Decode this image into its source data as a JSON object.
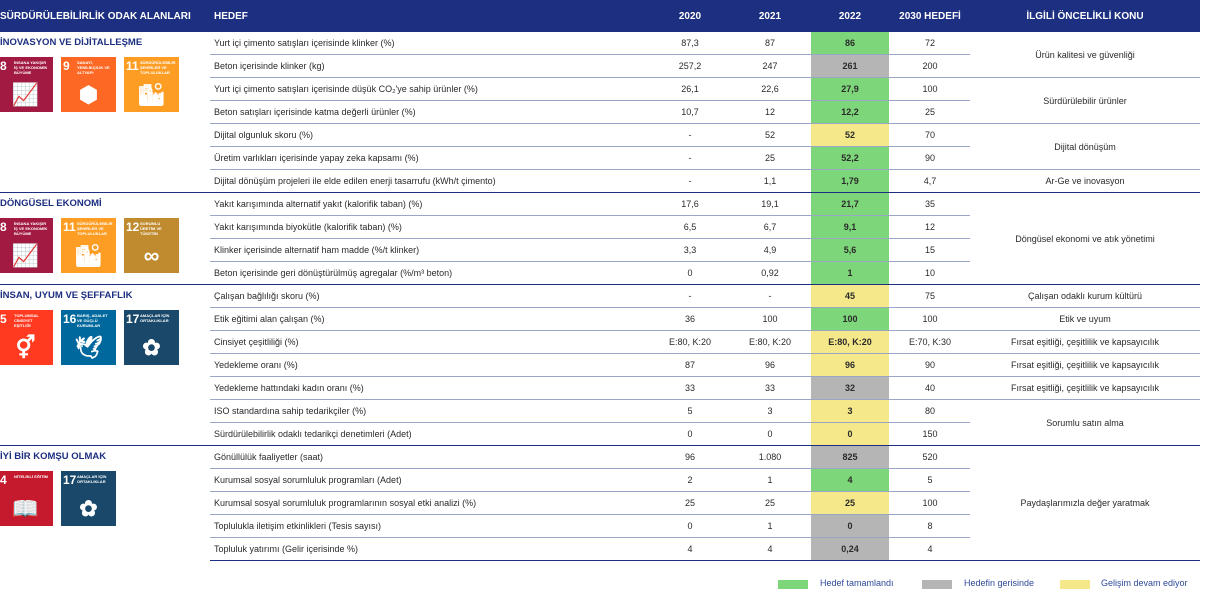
{
  "header": {
    "col_focus": "SÜRDÜRÜLEBİLİRLİK ODAK ALANLARI",
    "col_hedef": "HEDEF",
    "col_2020": "2020",
    "col_2021": "2021",
    "col_2022": "2022",
    "col_2030": "2030 HEDEFİ",
    "col_konu": "İLGİLİ ÖNCELİKLİ KONU"
  },
  "sections": [
    {
      "title": "İNOVASYON VE DİJİTALLEŞME",
      "sdgs": [
        {
          "num": "8",
          "label": "İNSANA YAKIŞIR İŞ VE EKONOMİK BÜYÜME",
          "color": "#a21942",
          "icon": "📈"
        },
        {
          "num": "9",
          "label": "SANAYİ, YENİLİKÇİLİK VE ALTYAPI",
          "color": "#fd6925",
          "icon": "⬢"
        },
        {
          "num": "11",
          "label": "SÜRDÜRÜLEBİLİR ŞEHİRLER VE TOPLULUKLAR",
          "color": "#fd9d24",
          "icon": "🏙"
        }
      ]
    },
    {
      "title": "DÖNGÜSEL EKONOMİ",
      "sdgs": [
        {
          "num": "8",
          "label": "İNSANA YAKIŞIR İŞ VE EKONOMİK BÜYÜME",
          "color": "#a21942",
          "icon": "📈"
        },
        {
          "num": "11",
          "label": "SÜRDÜRÜLEBİLİR ŞEHİRLER VE TOPLULUKLAR",
          "color": "#fd9d24",
          "icon": "🏙"
        },
        {
          "num": "12",
          "label": "SORUMLU ÜRETİM VE TÜKETİM",
          "color": "#bf8b2e",
          "icon": "∞"
        }
      ]
    },
    {
      "title": "İNSAN, UYUM VE ŞEFFAFLIK",
      "sdgs": [
        {
          "num": "5",
          "label": "TOPLUMSAL CİNSİYET EŞİTLİĞİ",
          "color": "#ff3a21",
          "icon": "⚥"
        },
        {
          "num": "16",
          "label": "BARIŞ, ADALET VE GÜÇLÜ KURUMLAR",
          "color": "#00689d",
          "icon": "🕊"
        },
        {
          "num": "17",
          "label": "AMAÇLAR İÇİN ORTAKLIKLAR",
          "color": "#19486a",
          "icon": "✿"
        }
      ]
    },
    {
      "title": "İYİ BİR KOMŞU OLMAK",
      "sdgs": [
        {
          "num": "4",
          "label": "NİTELİKLİ EĞİTİM",
          "color": "#c5192d",
          "icon": "📖"
        },
        {
          "num": "17",
          "label": "AMAÇLAR İÇİN ORTAKLIKLAR",
          "color": "#19486a",
          "icon": "✿"
        }
      ]
    }
  ],
  "rows": [
    {
      "hedef": "Yurt içi çimento satışları içerisinde klinker (%)",
      "v2020": "87,3",
      "v2021": "87",
      "v2022": "86",
      "v2030": "72",
      "status": "g"
    },
    {
      "hedef": "Beton içerisinde klinker (kg)",
      "v2020": "257,2",
      "v2021": "247",
      "v2022": "261",
      "v2030": "200",
      "status": "gr"
    },
    {
      "hedef": "Yurt içi çimento satışları içerisinde düşük CO₂'ye sahip ürünler (%)",
      "v2020": "26,1",
      "v2021": "22,6",
      "v2022": "27,9",
      "v2030": "100",
      "status": "g"
    },
    {
      "hedef": "Beton satışları içerisinde katma değerli ürünler (%)",
      "v2020": "10,7",
      "v2021": "12",
      "v2022": "12,2",
      "v2030": "25",
      "status": "g"
    },
    {
      "hedef": "Dijital olgunluk skoru (%)",
      "v2020": "-",
      "v2021": "52",
      "v2022": "52",
      "v2030": "70",
      "status": "y"
    },
    {
      "hedef": "Üretim varlıkları içerisinde yapay zeka kapsamı (%)",
      "v2020": "-",
      "v2021": "25",
      "v2022": "52,2",
      "v2030": "90",
      "status": "g"
    },
    {
      "hedef": "Dijital dönüşüm projeleri ile elde edilen enerji tasarrufu (kWh/t çimento)",
      "v2020": "-",
      "v2021": "1,1",
      "v2022": "1,79",
      "v2030": "4,7",
      "status": "g"
    },
    {
      "hedef": "Yakıt karışımında alternatif yakıt (kalorifik taban) (%)",
      "v2020": "17,6",
      "v2021": "19,1",
      "v2022": "21,7",
      "v2030": "35",
      "status": "g"
    },
    {
      "hedef": "Yakıt karışımında biyokütle (kalorifik taban) (%)",
      "v2020": "6,5",
      "v2021": "6,7",
      "v2022": "9,1",
      "v2030": "12",
      "status": "g"
    },
    {
      "hedef": "Klinker içerisinde alternatif ham madde (%/t klinker)",
      "v2020": "3,3",
      "v2021": "4,9",
      "v2022": "5,6",
      "v2030": "15",
      "status": "g"
    },
    {
      "hedef": "Beton içerisinde geri dönüştürülmüş agregalar (%/m³ beton)",
      "v2020": "0",
      "v2021": "0,92",
      "v2022": "1",
      "v2030": "10",
      "status": "g"
    },
    {
      "hedef": "Çalışan bağlılığı skoru (%)",
      "v2020": "-",
      "v2021": "-",
      "v2022": "45",
      "v2030": "75",
      "status": "y"
    },
    {
      "hedef": "Etik eğitimi alan çalışan (%)",
      "v2020": "36",
      "v2021": "100",
      "v2022": "100",
      "v2030": "100",
      "status": "g"
    },
    {
      "hedef": "Cinsiyet çeşitliliği (%)",
      "v2020": "E:80, K:20",
      "v2021": "E:80, K:20",
      "v2022": "E:80, K:20",
      "v2030": "E:70, K:30",
      "status": "y"
    },
    {
      "hedef": "Yedekleme oranı (%)",
      "v2020": "87",
      "v2021": "96",
      "v2022": "96",
      "v2030": "90",
      "status": "y"
    },
    {
      "hedef": "Yedekleme hattındaki kadın oranı (%)",
      "v2020": "33",
      "v2021": "33",
      "v2022": "32",
      "v2030": "40",
      "status": "gr"
    },
    {
      "hedef": "ISO standardına sahip tedarikçiler (%)",
      "v2020": "5",
      "v2021": "3",
      "v2022": "3",
      "v2030": "80",
      "status": "y"
    },
    {
      "hedef": "Sürdürülebilirlik odaklı tedarikçi denetimleri (Adet)",
      "v2020": "0",
      "v2021": "0",
      "v2022": "0",
      "v2030": "150",
      "status": "y"
    },
    {
      "hedef": "Gönüllülük faaliyetler (saat)",
      "v2020": "96",
      "v2021": "1.080",
      "v2022": "825",
      "v2030": "520",
      "status": "gr"
    },
    {
      "hedef": "Kurumsal sosyal sorumluluk programları (Adet)",
      "v2020": "2",
      "v2021": "1",
      "v2022": "4",
      "v2030": "5",
      "status": "g"
    },
    {
      "hedef": "Kurumsal sosyal sorumluluk programlarının sosyal etki analizi (%)",
      "v2020": "25",
      "v2021": "25",
      "v2022": "25",
      "v2030": "100",
      "status": "y"
    },
    {
      "hedef": "Toplulukla iletişim etkinlikleri (Tesis sayısı)",
      "v2020": "0",
      "v2021": "1",
      "v2022": "0",
      "v2030": "8",
      "status": "gr"
    },
    {
      "hedef": "Topluluk yatırımı (Gelir içerisinde %)",
      "v2020": "4",
      "v2021": "4",
      "v2022": "0,24",
      "v2030": "4",
      "status": "gr"
    }
  ],
  "konular": [
    {
      "text": "Ürün kalitesi ve güvenliği",
      "from": 0,
      "to": 1
    },
    {
      "text": "Sürdürülebilir ürünler",
      "from": 2,
      "to": 3
    },
    {
      "text": "Dijital dönüşüm",
      "from": 4,
      "to": 5
    },
    {
      "text": "Ar-Ge ve inovasyon",
      "from": 6,
      "to": 6
    },
    {
      "text": "Döngüsel ekonomi ve atık yönetimi",
      "from": 7,
      "to": 10
    },
    {
      "text": "Çalışan odaklı kurum kültürü",
      "from": 11,
      "to": 11
    },
    {
      "text": "Etik ve uyum",
      "from": 12,
      "to": 12
    },
    {
      "text": "Fırsat eşitliği, çeşitlilik ve kapsayıcılık",
      "from": 13,
      "to": 13
    },
    {
      "text": "Fırsat eşitliği, çeşitlilik ve kapsayıcılık",
      "from": 14,
      "to": 14
    },
    {
      "text": "Fırsat eşitliği, çeşitlilik ve kapsayıcılık",
      "from": 15,
      "to": 15
    },
    {
      "text": "Sorumlu satın alma",
      "from": 16,
      "to": 17
    },
    {
      "text": "Paydaşlarımızla değer yaratmak",
      "from": 18,
      "to": 22
    }
  ],
  "legend": {
    "done": "Hedef tamamlandı",
    "behind": "Hedefin gerisinde",
    "progress": "Gelişim devam ediyor",
    "colors": {
      "done": "#7ed67a",
      "behind": "#b5b5b5",
      "progress": "#f5e88a"
    }
  }
}
